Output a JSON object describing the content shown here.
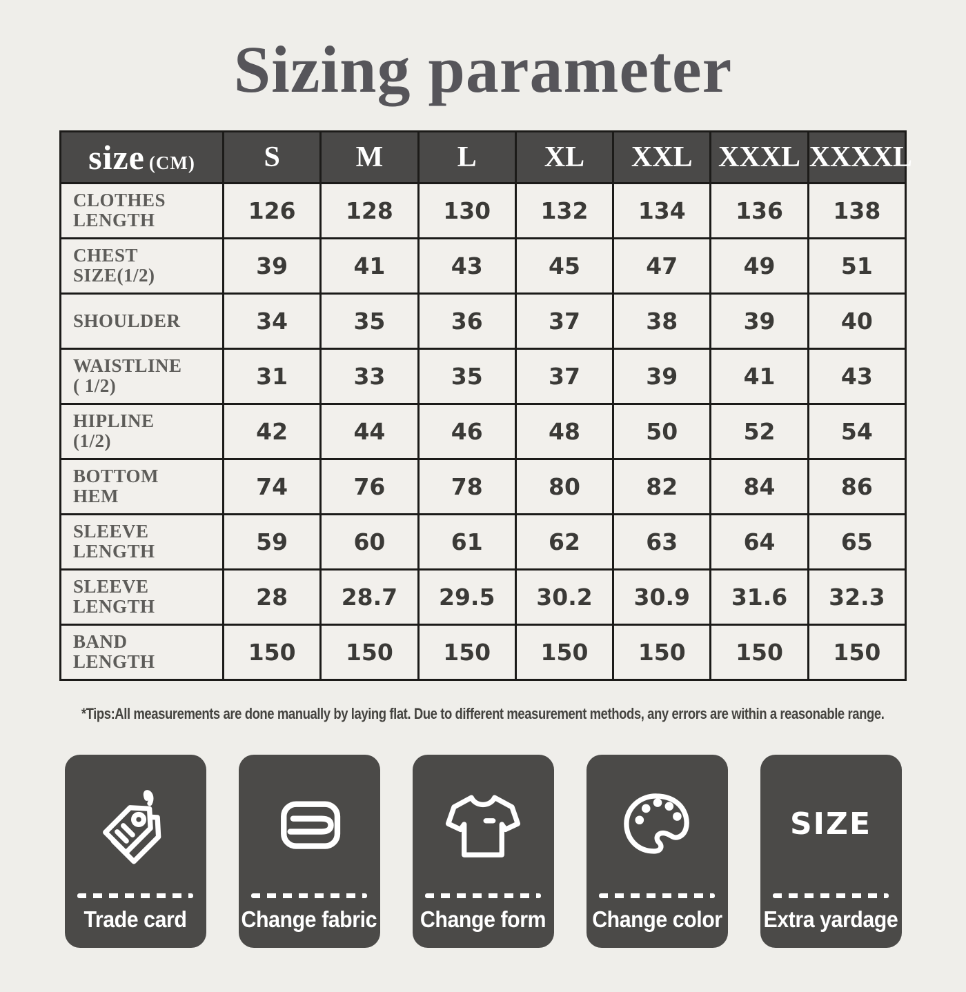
{
  "page": {
    "title": "Sizing parameter",
    "tips": "*Tips:All measurements are done manually by laying flat. Due to different measurement methods, any errors are within a reasonable range."
  },
  "table": {
    "corner": {
      "label": "size",
      "unit": "(CM)"
    },
    "sizes": [
      "S",
      "M",
      "L",
      "XL",
      "XXL",
      "XXXL",
      "XXXXL"
    ],
    "rows": [
      {
        "label_lines": [
          "CLOTHES",
          "LENGTH"
        ],
        "values": [
          "126",
          "128",
          "130",
          "132",
          "134",
          "136",
          "138"
        ]
      },
      {
        "label_lines": [
          "CHEST",
          "SIZE(1/2)"
        ],
        "values": [
          "39",
          "41",
          "43",
          "45",
          "47",
          "49",
          "51"
        ]
      },
      {
        "label_lines": [
          "SHOULDER"
        ],
        "values": [
          "34",
          "35",
          "36",
          "37",
          "38",
          "39",
          "40"
        ]
      },
      {
        "label_lines": [
          "WAISTLINE",
          "( 1/2)"
        ],
        "values": [
          "31",
          "33",
          "35",
          "37",
          "39",
          "41",
          "43"
        ]
      },
      {
        "label_lines": [
          "HIPLINE",
          "(1/2)"
        ],
        "values": [
          "42",
          "44",
          "46",
          "48",
          "50",
          "52",
          "54"
        ]
      },
      {
        "label_lines": [
          "BOTTOM",
          "HEM"
        ],
        "values": [
          "74",
          "76",
          "78",
          "80",
          "82",
          "84",
          "86"
        ]
      },
      {
        "label_lines": [
          "SLEEVE",
          "LENGTH"
        ],
        "values": [
          "59",
          "60",
          "61",
          "62",
          "63",
          "64",
          "65"
        ]
      },
      {
        "label_lines": [
          "SLEEVE",
          "LENGTH"
        ],
        "values": [
          "28",
          "28.7",
          "29.5",
          "30.2",
          "30.9",
          "31.6",
          "32.3"
        ]
      },
      {
        "label_lines": [
          "BAND",
          "LENGTH"
        ],
        "values": [
          "150",
          "150",
          "150",
          "150",
          "150",
          "150",
          "150"
        ]
      }
    ]
  },
  "cards": [
    {
      "icon": "price-tag-icon",
      "label": "Trade card"
    },
    {
      "icon": "folded-fabric-icon",
      "label": "Change fabric"
    },
    {
      "icon": "tshirt-icon",
      "label": "Change form"
    },
    {
      "icon": "palette-icon",
      "label": "Change color"
    },
    {
      "icon": "size-text-icon",
      "label": "Extra yardage",
      "icon_text": "SIZE"
    }
  ],
  "colors": {
    "background": "#efeeea",
    "header_bg": "#4a4948",
    "cell_bg": "#f2f0ec",
    "border": "#1c1b19",
    "card_bg": "#4b4a48",
    "title_text": "#56555a",
    "row_label_text": "#5d5c59",
    "value_text": "#3b3a37",
    "icon_stroke": "#ffffff"
  }
}
